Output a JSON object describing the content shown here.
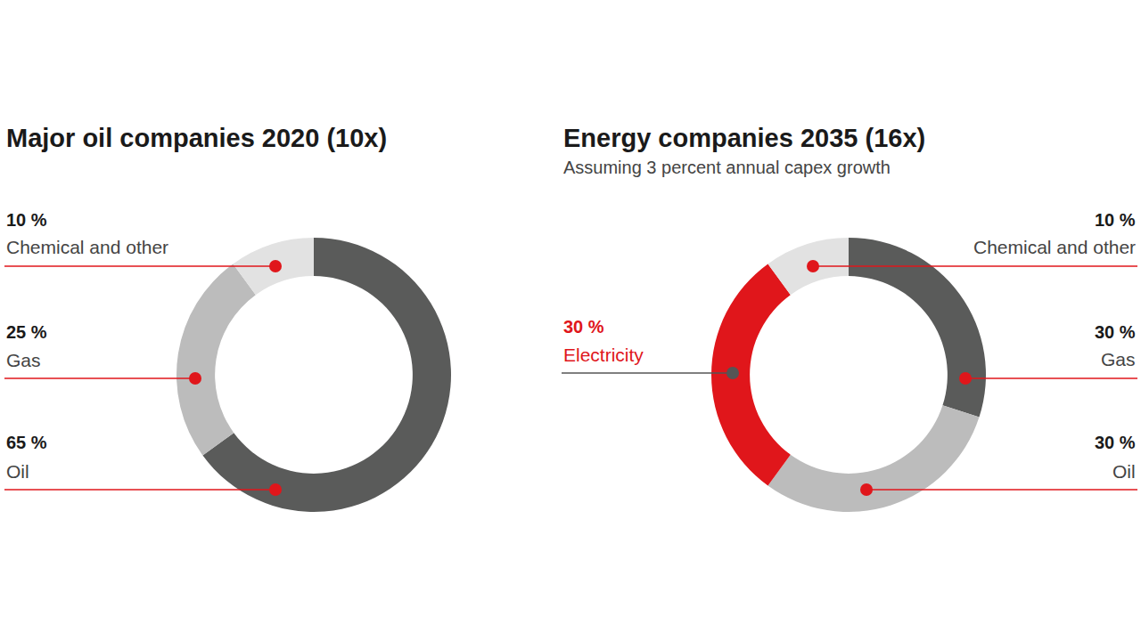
{
  "chart_data": [
    {
      "type": "pie",
      "title": "Major oil companies 2020 (10x)",
      "categories": [
        "Oil",
        "Gas",
        "Chemical and other"
      ],
      "values": [
        65,
        25,
        10
      ],
      "value_labels": [
        "65 %",
        "25 %",
        "10 %"
      ],
      "colors": [
        "#5a5b5a",
        "#bcbcbc",
        "#e2e2e2"
      ],
      "data_labels": true
    },
    {
      "type": "pie",
      "title": "Energy companies 2035 (16x)",
      "subtitle": "Assuming 3 percent annual capex growth",
      "categories": [
        "Gas",
        "Oil",
        "Electricity",
        "Chemical and other"
      ],
      "values": [
        30,
        30,
        30,
        10
      ],
      "value_labels": [
        "30 %",
        "30 %",
        "30 %",
        "10 %"
      ],
      "colors": [
        "#5a5b5a",
        "#bcbcbc",
        "#e0161b",
        "#e2e2e2"
      ],
      "data_labels": true
    }
  ]
}
